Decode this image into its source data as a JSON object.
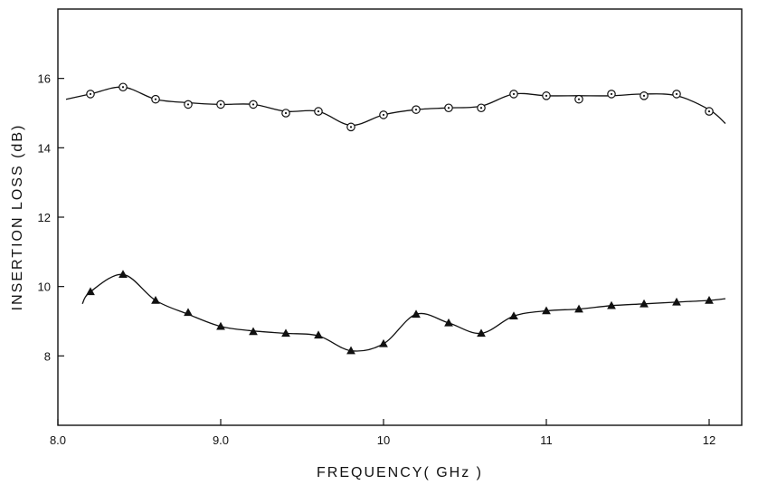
{
  "chart_data": {
    "type": "line",
    "title": "",
    "xlabel": "FREQUENCY( GHz )",
    "ylabel": "INSERTION  LOSS (dB)",
    "xlim": [
      8.0,
      12.2
    ],
    "ylim": [
      6.0,
      18.0
    ],
    "x_ticks": [
      8.0,
      9.0,
      10,
      11,
      12
    ],
    "x_tick_labels": [
      "8.0",
      "9.0",
      "10",
      "11",
      "12"
    ],
    "y_ticks": [
      8,
      10,
      12,
      14,
      16
    ],
    "y_tick_labels": [
      "8",
      "10",
      "12",
      "14",
      "16"
    ],
    "grid": false,
    "series": [
      {
        "marker": "circle-dot",
        "x": [
          8.2,
          8.4,
          8.6,
          8.8,
          9.0,
          9.2,
          9.4,
          9.6,
          9.8,
          10.0,
          10.2,
          10.4,
          10.6,
          10.8,
          11.0,
          11.2,
          11.4,
          11.6,
          11.8,
          12.0
        ],
        "values": [
          15.55,
          15.75,
          15.4,
          15.25,
          15.25,
          15.25,
          15.0,
          15.05,
          14.6,
          14.95,
          15.1,
          15.15,
          15.15,
          15.55,
          15.5,
          15.4,
          15.55,
          15.5,
          15.55,
          15.05
        ],
        "curve_x": [
          8.05,
          8.2,
          8.4,
          8.6,
          8.8,
          9.0,
          9.2,
          9.4,
          9.6,
          9.8,
          10.0,
          10.2,
          10.4,
          10.6,
          10.8,
          11.0,
          11.2,
          11.4,
          11.6,
          11.8,
          12.0,
          12.1
        ],
        "curve_y": [
          15.4,
          15.55,
          15.75,
          15.4,
          15.3,
          15.25,
          15.25,
          15.05,
          15.05,
          14.65,
          14.95,
          15.1,
          15.15,
          15.2,
          15.55,
          15.5,
          15.5,
          15.5,
          15.55,
          15.5,
          15.1,
          14.7
        ]
      },
      {
        "marker": "triangle",
        "x": [
          8.2,
          8.4,
          8.6,
          8.8,
          9.0,
          9.2,
          9.4,
          9.6,
          9.8,
          10.0,
          10.2,
          10.4,
          10.6,
          10.8,
          11.0,
          11.2,
          11.4,
          11.6,
          11.8,
          12.0
        ],
        "values": [
          9.85,
          10.35,
          9.6,
          9.25,
          8.85,
          8.7,
          8.65,
          8.6,
          8.15,
          8.35,
          9.2,
          8.95,
          8.65,
          9.15,
          9.3,
          9.35,
          9.45,
          9.5,
          9.55,
          9.6
        ],
        "curve_x": [
          8.15,
          8.2,
          8.4,
          8.6,
          8.8,
          9.0,
          9.2,
          9.4,
          9.6,
          9.8,
          10.0,
          10.2,
          10.4,
          10.6,
          10.8,
          11.0,
          11.2,
          11.4,
          11.6,
          11.8,
          12.0,
          12.1
        ],
        "curve_y": [
          9.5,
          9.85,
          10.35,
          9.6,
          9.2,
          8.85,
          8.72,
          8.65,
          8.58,
          8.15,
          8.35,
          9.2,
          8.95,
          8.65,
          9.15,
          9.3,
          9.35,
          9.45,
          9.5,
          9.55,
          9.6,
          9.65
        ]
      }
    ]
  }
}
